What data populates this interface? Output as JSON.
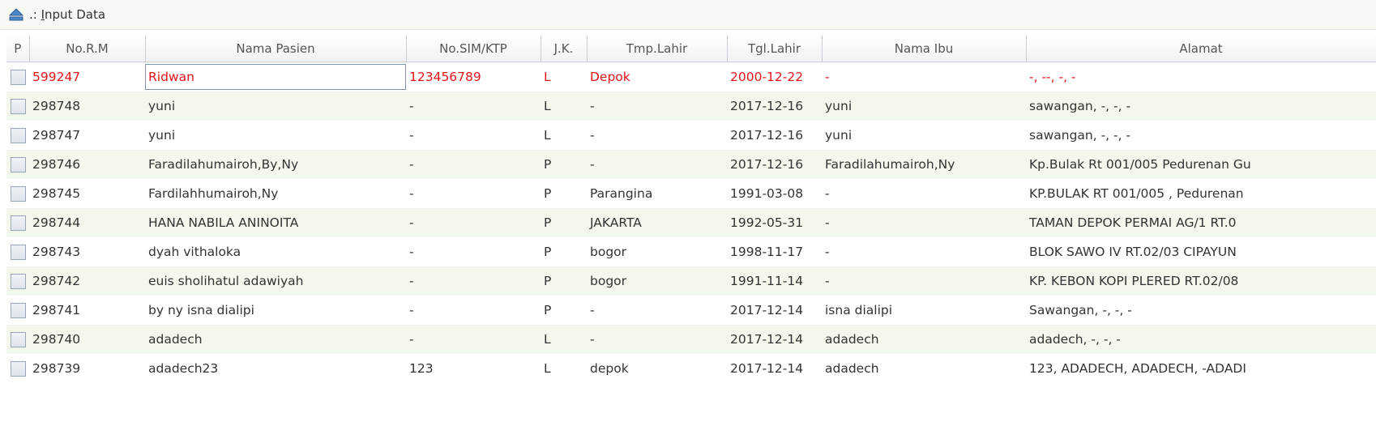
{
  "panel": {
    "title_prefix": ".: ",
    "title_accel": "I",
    "title_rest": "nput Data"
  },
  "columns": [
    "P",
    "No.R.M",
    "Nama Pasien",
    "No.SIM/KTP",
    "J.K.",
    "Tmp.Lahir",
    "Tgl.Lahir",
    "Nama Ibu",
    "Alamat"
  ],
  "rows": [
    {
      "rm": "599247",
      "nama": "Ridwan",
      "sim": "123456789",
      "jk": "L",
      "tmp": "Depok",
      "tgl": "2000-12-22",
      "ibu": "-",
      "alamat": "-, --, -, -"
    },
    {
      "rm": "298748",
      "nama": "yuni",
      "sim": "-",
      "jk": "L",
      "tmp": "-",
      "tgl": "2017-12-16",
      "ibu": "yuni",
      "alamat": "sawangan, -, -, -"
    },
    {
      "rm": "298747",
      "nama": "yuni",
      "sim": "-",
      "jk": "L",
      "tmp": "-",
      "tgl": "2017-12-16",
      "ibu": "yuni",
      "alamat": "sawangan, -, -, -"
    },
    {
      "rm": "298746",
      "nama": "Faradilahumairoh,By,Ny",
      "sim": "-",
      "jk": "P",
      "tmp": "-",
      "tgl": "2017-12-16",
      "ibu": "Faradilahumairoh,Ny",
      "alamat": "Kp.Bulak Rt 001/005 Pedurenan Gu"
    },
    {
      "rm": "298745",
      "nama": "Fardilahhumairoh,Ny",
      "sim": "-",
      "jk": "P",
      "tmp": "Parangina",
      "tgl": "1991-03-08",
      "ibu": "-",
      "alamat": "KP.BULAK RT 001/005 , Pedurenan"
    },
    {
      "rm": "298744",
      "nama": "HANA NABILA ANINOITA",
      "sim": "-",
      "jk": "P",
      "tmp": "JAKARTA",
      "tgl": "1992-05-31",
      "ibu": "-",
      "alamat": "TAMAN  DEPOK PERMAI AG/1 RT.0"
    },
    {
      "rm": "298743",
      "nama": "dyah vithaloka",
      "sim": "-",
      "jk": "P",
      "tmp": "bogor",
      "tgl": "1998-11-17",
      "ibu": "-",
      "alamat": "BLOK SAWO IV RT.02/03 CIPAYUN"
    },
    {
      "rm": "298742",
      "nama": "euis sholihatul adawiyah",
      "sim": "-",
      "jk": "P",
      "tmp": "bogor",
      "tgl": "1991-11-14",
      "ibu": "-",
      "alamat": "KP. KEBON KOPI PLERED RT.02/08"
    },
    {
      "rm": "298741",
      "nama": "by ny isna dialipi",
      "sim": "-",
      "jk": "P",
      "tmp": "-",
      "tgl": "2017-12-14",
      "ibu": "isna dialipi",
      "alamat": "Sawangan, -, -, -"
    },
    {
      "rm": "298740",
      "nama": "adadech",
      "sim": "-",
      "jk": "L",
      "tmp": "-",
      "tgl": "2017-12-14",
      "ibu": "adadech",
      "alamat": "adadech, -, -, -"
    },
    {
      "rm": "298739",
      "nama": "adadech23",
      "sim": "123",
      "jk": "L",
      "tmp": "depok",
      "tgl": "2017-12-14",
      "ibu": "adadech",
      "alamat": "123, ADADECH, ADADECH, -ADADI"
    }
  ],
  "colors": {
    "selected_text": "#e8141c",
    "stripe": "#f3f8ec",
    "header_border": "#c9cfd8"
  },
  "icons": {
    "title": "eject-arrow-icon",
    "row_marker": "checkbox-icon"
  }
}
